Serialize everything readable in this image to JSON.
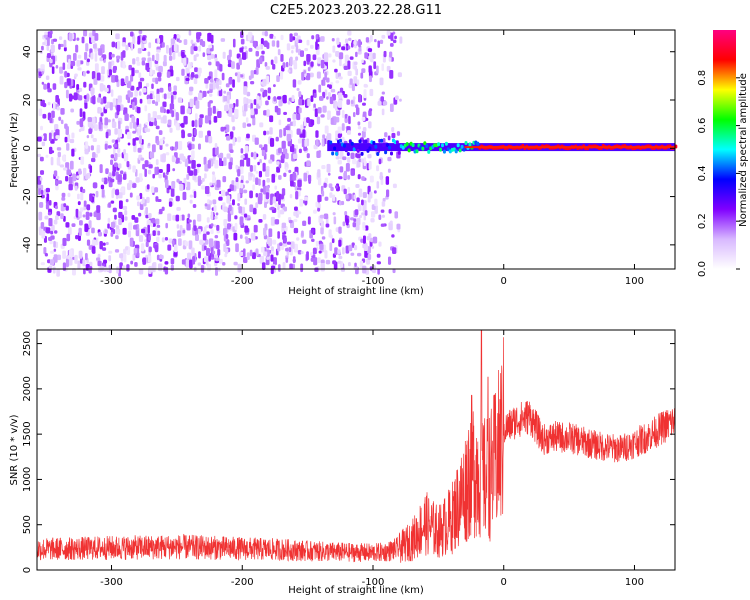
{
  "figure": {
    "title": "C2E5.2023.203.22.28.G11"
  },
  "chart_data": [
    {
      "type": "heatmap",
      "xlabel": "Height of straight line (km)",
      "ylabel": "Frequency (Hz)",
      "xlim": [
        -357,
        131
      ],
      "ylim": [
        -50,
        49
      ],
      "xticks": [
        -300,
        -200,
        -100,
        0,
        100
      ],
      "yticks": [
        -40,
        -20,
        0,
        20,
        40
      ],
      "colorbar": {
        "label": "Normalized spectral amplitude",
        "range": [
          0,
          1
        ],
        "ticks": [
          "0.0",
          "0.2",
          "0.4",
          "0.6",
          "0.8"
        ],
        "colormap": [
          "#ffffff",
          "#d8b8ff",
          "#8000ff",
          "#0000ff",
          "#00ffff",
          "#00ff00",
          "#ffff00",
          "#ff0000",
          "#ff0080"
        ]
      },
      "features": [
        {
          "region": "broadband noise",
          "x_range": [
            -357,
            -90
          ],
          "y_range": [
            -50,
            49
          ],
          "level": 0.15
        },
        {
          "region": "spectral line",
          "x_range": [
            -135,
            131
          ],
          "frequency": 0.5,
          "level": 0.9
        }
      ]
    },
    {
      "type": "line",
      "xlabel": "Height of straight line (km)",
      "ylabel": "SNR (10 * v/v)",
      "xlim": [
        -357,
        131
      ],
      "ylim": [
        0,
        2650
      ],
      "xticks": [
        -300,
        -200,
        -100,
        0,
        100
      ],
      "yticks": [
        0,
        500,
        1000,
        1500,
        2000,
        2500
      ],
      "color": "#f03232",
      "series": [
        {
          "x": [
            -357,
            -330,
            -300,
            -270,
            -250,
            -220,
            -200,
            -170,
            -150,
            -120,
            -100,
            -90,
            -80,
            -70,
            -60,
            -50,
            -40,
            -30,
            -25,
            -20,
            -15,
            -10,
            -5,
            0,
            10,
            20,
            30,
            40,
            50,
            60,
            70,
            80,
            90,
            100,
            110,
            120,
            131
          ],
          "values": [
            230,
            235,
            245,
            250,
            255,
            245,
            235,
            225,
            210,
            195,
            190,
            200,
            240,
            330,
            520,
            420,
            560,
            880,
            1150,
            1100,
            1000,
            1050,
            1250,
            1550,
            1650,
            1700,
            1440,
            1470,
            1460,
            1420,
            1380,
            1350,
            1340,
            1400,
            1470,
            1560,
            1650
          ]
        }
      ],
      "spikes": [
        {
          "x": -17,
          "value": 2650
        },
        {
          "x": -12,
          "value": 2130
        }
      ]
    }
  ]
}
